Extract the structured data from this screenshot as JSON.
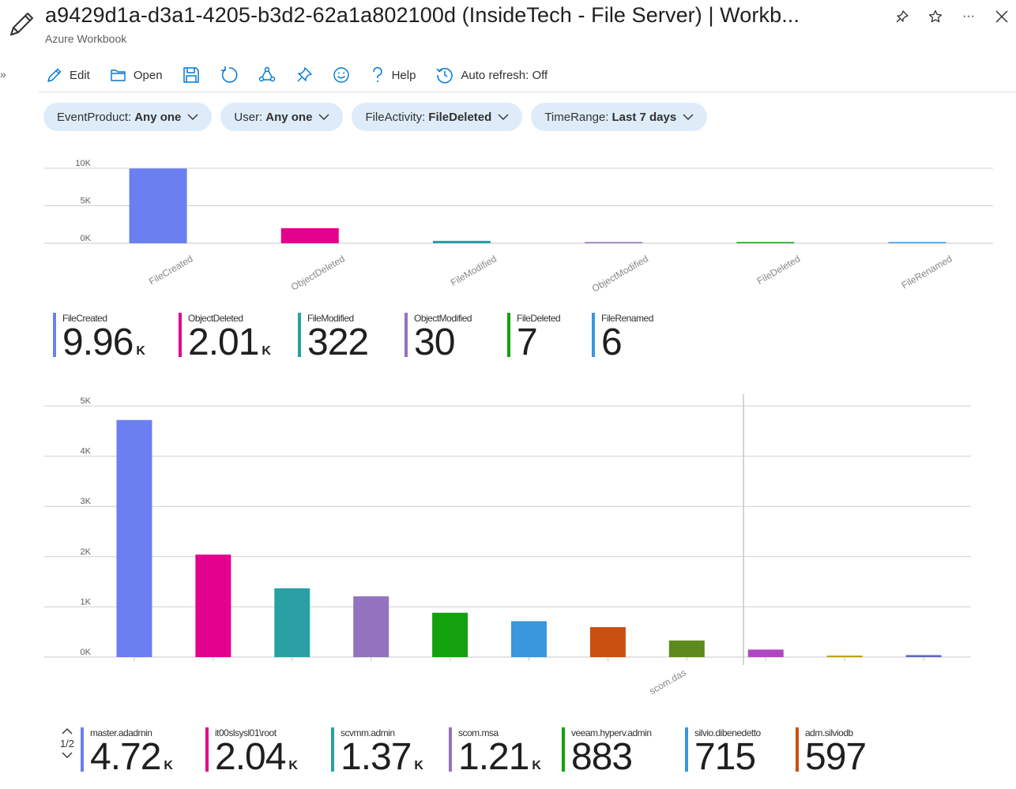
{
  "header": {
    "title": "a9429d1a-d3a1-4205-b3d2-62a1a802100d (InsideTech - File Server) | Workb...",
    "subtitle": "Azure Workbook"
  },
  "toolbar": {
    "edit_label": "Edit",
    "open_label": "Open",
    "help_label": "Help",
    "auto_refresh_label": "Auto refresh: Off"
  },
  "params": [
    {
      "name": "EventProduct:",
      "value": "Any one"
    },
    {
      "name": "User:",
      "value": "Any one"
    },
    {
      "name": "FileActivity:",
      "value": "FileDeleted"
    },
    {
      "name": "TimeRange:",
      "value": "Last 7 days"
    }
  ],
  "tiles_top": [
    {
      "label": "FileCreated",
      "value": "9.96",
      "unit": "K",
      "color": "#6b7ff0"
    },
    {
      "label": "ObjectDeleted",
      "value": "2.01",
      "unit": "K",
      "color": "#e3008c"
    },
    {
      "label": "FileModified",
      "value": "322",
      "unit": "",
      "color": "#2aa0a4"
    },
    {
      "label": "ObjectModified",
      "value": "30",
      "unit": "",
      "color": "#9373c0"
    },
    {
      "label": "FileDeleted",
      "value": "7",
      "unit": "",
      "color": "#13a10e"
    },
    {
      "label": "FileRenamed",
      "value": "6",
      "unit": "",
      "color": "#3a96dd"
    }
  ],
  "tiles_bottom": [
    {
      "label": "master.adadmin",
      "value": "4.72",
      "unit": "K",
      "color": "#6b7ff0"
    },
    {
      "label": "it00slsysl01\\root",
      "value": "2.04",
      "unit": "K",
      "color": "#e3008c"
    },
    {
      "label": "scvmm.admin",
      "value": "1.37",
      "unit": "K",
      "color": "#2aa0a4"
    },
    {
      "label": "scom.msa",
      "value": "1.21",
      "unit": "K",
      "color": "#9373c0"
    },
    {
      "label": "veeam.hyperv.admin",
      "value": "883",
      "unit": "",
      "color": "#13a10e"
    },
    {
      "label": "silvio.dibenedetto",
      "value": "715",
      "unit": "",
      "color": "#3a96dd"
    },
    {
      "label": "adm.silviodb",
      "value": "597",
      "unit": "",
      "color": "#ca5010"
    }
  ],
  "pager": {
    "page_text": "1/2"
  },
  "chart_data": [
    {
      "type": "bar",
      "categories": [
        "FileCreated",
        "ObjectDeleted",
        "FileModified",
        "ObjectModified",
        "FileDeleted",
        "FileRenamed"
      ],
      "values": [
        9960,
        2010,
        322,
        30,
        7,
        6
      ],
      "colors": [
        "#6b7ff0",
        "#e3008c",
        "#2aa0a4",
        "#9373c0",
        "#13a10e",
        "#3a96dd"
      ],
      "yticks": [
        "10K",
        "5K",
        "0K"
      ],
      "ylim": [
        0,
        10000
      ],
      "grid": true
    },
    {
      "type": "bar",
      "categories": [
        "",
        "",
        "",
        "",
        "",
        "",
        "",
        "scom.das",
        "",
        "",
        ""
      ],
      "values": [
        4720,
        2040,
        1370,
        1210,
        883,
        715,
        597,
        330,
        150,
        30,
        40
      ],
      "colors": [
        "#6b7ff0",
        "#e3008c",
        "#2aa0a4",
        "#9373c0",
        "#13a10e",
        "#3a96dd",
        "#ca5010",
        "#5c8a1e",
        "#b146c2",
        "#c19c00",
        "#5c6bc0"
      ],
      "yticks": [
        "5K",
        "4K",
        "3K",
        "2K",
        "1K",
        "0K"
      ],
      "ylim": [
        0,
        5000
      ],
      "grid": true
    }
  ]
}
